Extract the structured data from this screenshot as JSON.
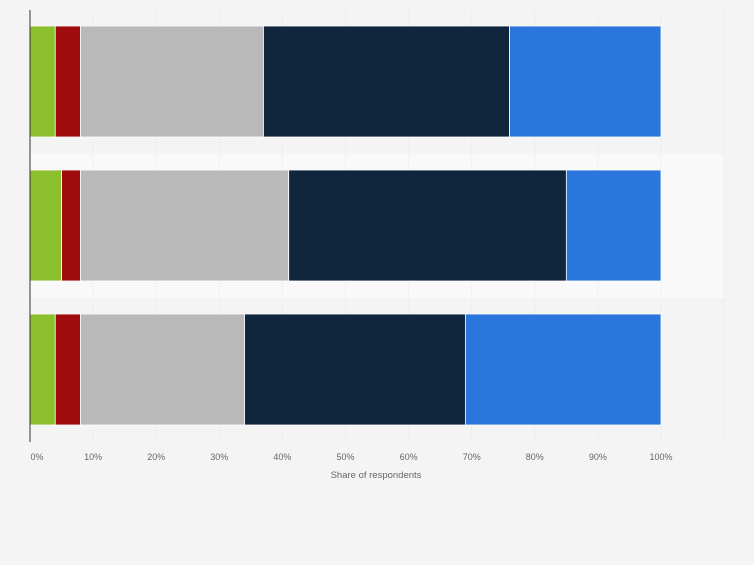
{
  "chart_data": {
    "type": "bar",
    "orientation": "horizontal",
    "stacked": true,
    "title": "",
    "xlabel": "Share of respondents",
    "ylabel": "",
    "xlim": [
      0,
      100
    ],
    "x_ticks": [
      0,
      10,
      20,
      30,
      40,
      50,
      60,
      70,
      80,
      90,
      100
    ],
    "x_tick_labels": [
      "0%",
      "10%",
      "20%",
      "30%",
      "40%",
      "50%",
      "60%",
      "70%",
      "80%",
      "90%",
      "100%"
    ],
    "categories": [
      "",
      "",
      ""
    ],
    "grid": true,
    "legend": "none",
    "series": [
      {
        "color": "#8bbf2d",
        "values": [
          4,
          5,
          4
        ]
      },
      {
        "color": "#a00c0c",
        "values": [
          4,
          3,
          4
        ]
      },
      {
        "color": "#b9b9b9",
        "values": [
          29,
          33,
          26
        ]
      },
      {
        "color": "#10263d",
        "values": [
          39,
          44,
          35
        ]
      },
      {
        "color": "#2b76dc",
        "values": [
          24,
          15,
          31
        ]
      }
    ]
  }
}
